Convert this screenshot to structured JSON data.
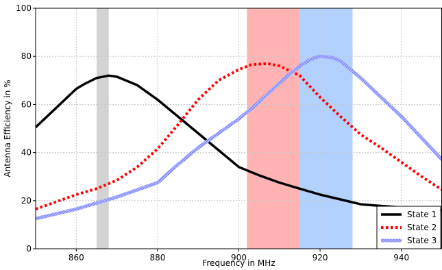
{
  "chart_data": {
    "type": "line",
    "title": "",
    "xlabel": "Frequency in MHz",
    "ylabel": "Antenna Efficiency in %",
    "xlim": [
      850,
      950
    ],
    "ylim": [
      0,
      100
    ],
    "xticks": [
      860,
      880,
      900,
      920,
      940
    ],
    "yticks": [
      0,
      20,
      40,
      60,
      80,
      100
    ],
    "grid": true,
    "legend_position": "bottom-right",
    "bands": [
      {
        "x0": 865,
        "x1": 868,
        "color": "#d3d3d3"
      },
      {
        "x0": 902,
        "x1": 915,
        "color": "#ffb3b3"
      },
      {
        "x0": 915,
        "x1": 928,
        "color": "#b3d1ff"
      }
    ],
    "series": [
      {
        "name": "State 1",
        "color": "#000000",
        "style": "solid",
        "x": [
          850,
          855,
          860,
          862,
          865,
          868,
          870,
          875,
          880,
          885,
          890,
          895,
          900,
          905,
          910,
          915,
          920,
          925,
          930,
          935,
          940,
          945,
          950
        ],
        "y": [
          50.5,
          58.5,
          66.5,
          68.5,
          71,
          72,
          71.5,
          68,
          62,
          55,
          48,
          41,
          34,
          30.5,
          27.5,
          25,
          22.5,
          20.5,
          18.5,
          17.8,
          17.2,
          16.6,
          16
        ]
      },
      {
        "name": "State 2",
        "color": "#ff0000",
        "style": "dotted",
        "x": [
          850,
          855,
          860,
          865,
          870,
          875,
          880,
          885,
          890,
          895,
          900,
          903,
          907,
          910,
          915,
          920,
          925,
          930,
          935,
          940,
          945,
          950
        ],
        "y": [
          16.5,
          19.5,
          22.5,
          25,
          28.5,
          34,
          41.5,
          51.5,
          62,
          70,
          74.5,
          76.5,
          77,
          76,
          72,
          63,
          55,
          47.5,
          42,
          36,
          30,
          24.5
        ]
      },
      {
        "name": "State 3",
        "color": "#8c96ff",
        "style": "hatched",
        "x": [
          850,
          855,
          860,
          865,
          870,
          875,
          880,
          885,
          890,
          895,
          900,
          905,
          910,
          915,
          918,
          920,
          923,
          925,
          930,
          935,
          940,
          945,
          950
        ],
        "y": [
          12.5,
          14.5,
          16.5,
          19,
          21.5,
          24.5,
          27.5,
          35,
          42,
          48,
          54,
          61,
          69,
          76,
          79,
          80,
          79.5,
          78,
          71,
          63,
          55,
          46,
          37
        ]
      }
    ]
  }
}
